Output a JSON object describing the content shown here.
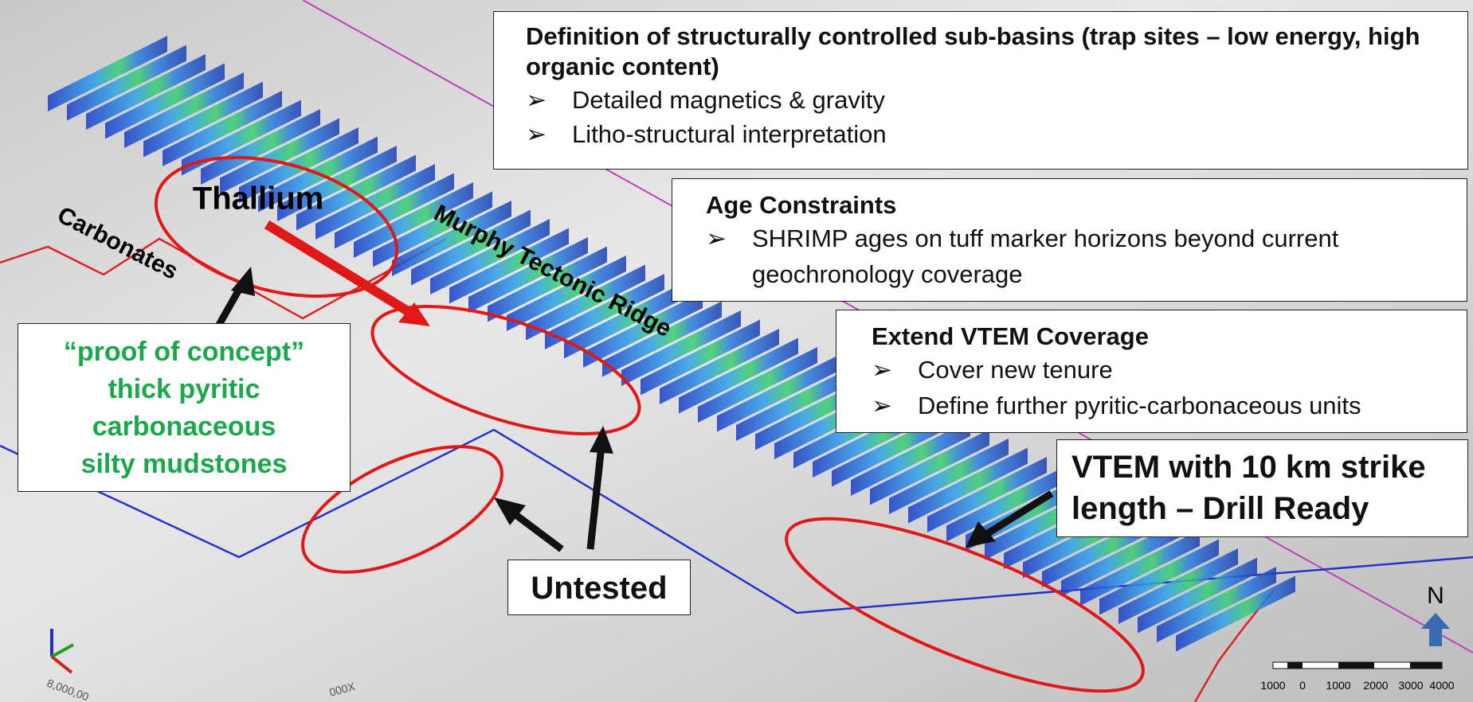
{
  "boxes": [
    {
      "title": "Definition of structurally controlled sub-basins (trap sites – low energy, high organic content)",
      "bullets": [
        "Detailed magnetics & gravity",
        "Litho-structural interpretation"
      ]
    },
    {
      "title": "Age Constraints",
      "bullets": [
        "SHRIMP ages on tuff marker horizons beyond current geochronology coverage"
      ]
    },
    {
      "title": "Extend VTEM Coverage",
      "bullets": [
        "Cover new tenure",
        "Define further pyritic-carbonaceous units"
      ]
    }
  ],
  "callouts": {
    "vtem": [
      "VTEM with 10 km strike",
      "length – Drill Ready"
    ],
    "proof": [
      "“proof of concept”",
      "thick pyritic",
      "carbonaceous",
      "silty mudstones"
    ],
    "untested": "Untested"
  },
  "map_labels": {
    "thallium": "Thallium",
    "carbonates": "Carbonates",
    "ridge": "Murphy Tectonic Ridge",
    "north": "N",
    "easting": "8,000,00",
    "northing": "000X"
  },
  "scale_bar": [
    "1000",
    "0",
    "1000",
    "2000",
    "3000",
    "4000"
  ]
}
